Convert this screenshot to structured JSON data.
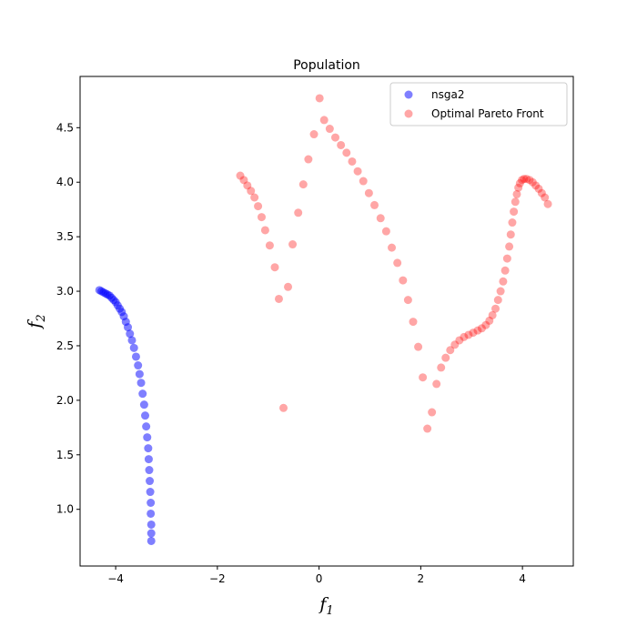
{
  "chart_data": {
    "type": "scatter",
    "title": "Population",
    "xlabel": {
      "base": "f",
      "sub": "1"
    },
    "ylabel": {
      "base": "f",
      "sub": "2"
    },
    "xlim": [
      -4.7,
      5.0
    ],
    "ylim": [
      0.48,
      4.97
    ],
    "xticks": [
      -4,
      -2,
      0,
      2,
      4
    ],
    "xtick_labels": [
      "−4",
      "−2",
      "0",
      "2",
      "4"
    ],
    "yticks": [
      1.0,
      1.5,
      2.0,
      2.5,
      3.0,
      3.5,
      4.0,
      4.5
    ],
    "ytick_labels": [
      "1.0",
      "1.5",
      "2.0",
      "2.5",
      "3.0",
      "3.5",
      "4.0",
      "4.5"
    ],
    "grid": false,
    "legend_position": "upper right",
    "series": [
      {
        "name": "nsga2",
        "color": "#0000ff",
        "points": [
          [
            -4.32,
            3.01
          ],
          [
            -4.28,
            3.0
          ],
          [
            -4.24,
            2.99
          ],
          [
            -4.2,
            2.98
          ],
          [
            -4.16,
            2.97
          ],
          [
            -4.12,
            2.96
          ],
          [
            -4.08,
            2.94
          ],
          [
            -4.04,
            2.92
          ],
          [
            -4.0,
            2.9
          ],
          [
            -3.96,
            2.87
          ],
          [
            -3.92,
            2.84
          ],
          [
            -3.88,
            2.81
          ],
          [
            -3.84,
            2.77
          ],
          [
            -3.8,
            2.72
          ],
          [
            -3.76,
            2.67
          ],
          [
            -3.72,
            2.61
          ],
          [
            -3.68,
            2.55
          ],
          [
            -3.64,
            2.48
          ],
          [
            -3.6,
            2.4
          ],
          [
            -3.56,
            2.32
          ],
          [
            -3.53,
            2.24
          ],
          [
            -3.5,
            2.16
          ],
          [
            -3.47,
            2.06
          ],
          [
            -3.44,
            1.96
          ],
          [
            -3.42,
            1.86
          ],
          [
            -3.4,
            1.76
          ],
          [
            -3.38,
            1.66
          ],
          [
            -3.36,
            1.56
          ],
          [
            -3.35,
            1.46
          ],
          [
            -3.34,
            1.36
          ],
          [
            -3.33,
            1.26
          ],
          [
            -3.32,
            1.16
          ],
          [
            -3.31,
            1.06
          ],
          [
            -3.31,
            0.96
          ],
          [
            -3.3,
            0.86
          ],
          [
            -3.3,
            0.78
          ],
          [
            -3.3,
            0.71
          ]
        ]
      },
      {
        "name": "Optimal Pareto Front",
        "color": "#ff0000",
        "points": [
          [
            -1.55,
            4.06
          ],
          [
            -1.48,
            4.02
          ],
          [
            -1.41,
            3.97
          ],
          [
            -1.34,
            3.92
          ],
          [
            -1.27,
            3.86
          ],
          [
            -1.2,
            3.78
          ],
          [
            -1.13,
            3.68
          ],
          [
            -1.06,
            3.56
          ],
          [
            -0.97,
            3.42
          ],
          [
            -0.87,
            3.22
          ],
          [
            -0.79,
            2.93
          ],
          [
            -0.7,
            1.93
          ],
          [
            -0.61,
            3.04
          ],
          [
            -0.52,
            3.43
          ],
          [
            -0.41,
            3.72
          ],
          [
            -0.31,
            3.98
          ],
          [
            -0.21,
            4.21
          ],
          [
            -0.1,
            4.44
          ],
          [
            0.01,
            4.77
          ],
          [
            0.1,
            4.57
          ],
          [
            0.21,
            4.49
          ],
          [
            0.32,
            4.41
          ],
          [
            0.43,
            4.34
          ],
          [
            0.54,
            4.27
          ],
          [
            0.65,
            4.19
          ],
          [
            0.76,
            4.1
          ],
          [
            0.87,
            4.01
          ],
          [
            0.98,
            3.9
          ],
          [
            1.09,
            3.79
          ],
          [
            1.21,
            3.67
          ],
          [
            1.32,
            3.55
          ],
          [
            1.43,
            3.4
          ],
          [
            1.54,
            3.26
          ],
          [
            1.65,
            3.1
          ],
          [
            1.75,
            2.92
          ],
          [
            1.85,
            2.72
          ],
          [
            1.95,
            2.49
          ],
          [
            2.04,
            2.21
          ],
          [
            2.13,
            1.74
          ],
          [
            2.22,
            1.89
          ],
          [
            2.31,
            2.15
          ],
          [
            2.4,
            2.3
          ],
          [
            2.49,
            2.39
          ],
          [
            2.58,
            2.46
          ],
          [
            2.67,
            2.51
          ],
          [
            2.76,
            2.55
          ],
          [
            2.85,
            2.58
          ],
          [
            2.94,
            2.6
          ],
          [
            3.03,
            2.62
          ],
          [
            3.12,
            2.64
          ],
          [
            3.2,
            2.66
          ],
          [
            3.28,
            2.69
          ],
          [
            3.35,
            2.73
          ],
          [
            3.41,
            2.78
          ],
          [
            3.47,
            2.84
          ],
          [
            3.52,
            2.92
          ],
          [
            3.57,
            3.0
          ],
          [
            3.62,
            3.09
          ],
          [
            3.66,
            3.19
          ],
          [
            3.7,
            3.3
          ],
          [
            3.74,
            3.41
          ],
          [
            3.77,
            3.52
          ],
          [
            3.8,
            3.63
          ],
          [
            3.83,
            3.73
          ],
          [
            3.86,
            3.82
          ],
          [
            3.89,
            3.89
          ],
          [
            3.92,
            3.95
          ],
          [
            3.95,
            3.99
          ],
          [
            3.99,
            4.02
          ],
          [
            4.03,
            4.03
          ],
          [
            4.08,
            4.03
          ],
          [
            4.14,
            4.02
          ],
          [
            4.2,
            4.0
          ],
          [
            4.26,
            3.97
          ],
          [
            4.32,
            3.94
          ],
          [
            4.38,
            3.9
          ],
          [
            4.44,
            3.86
          ],
          [
            4.5,
            3.8
          ]
        ]
      }
    ]
  }
}
